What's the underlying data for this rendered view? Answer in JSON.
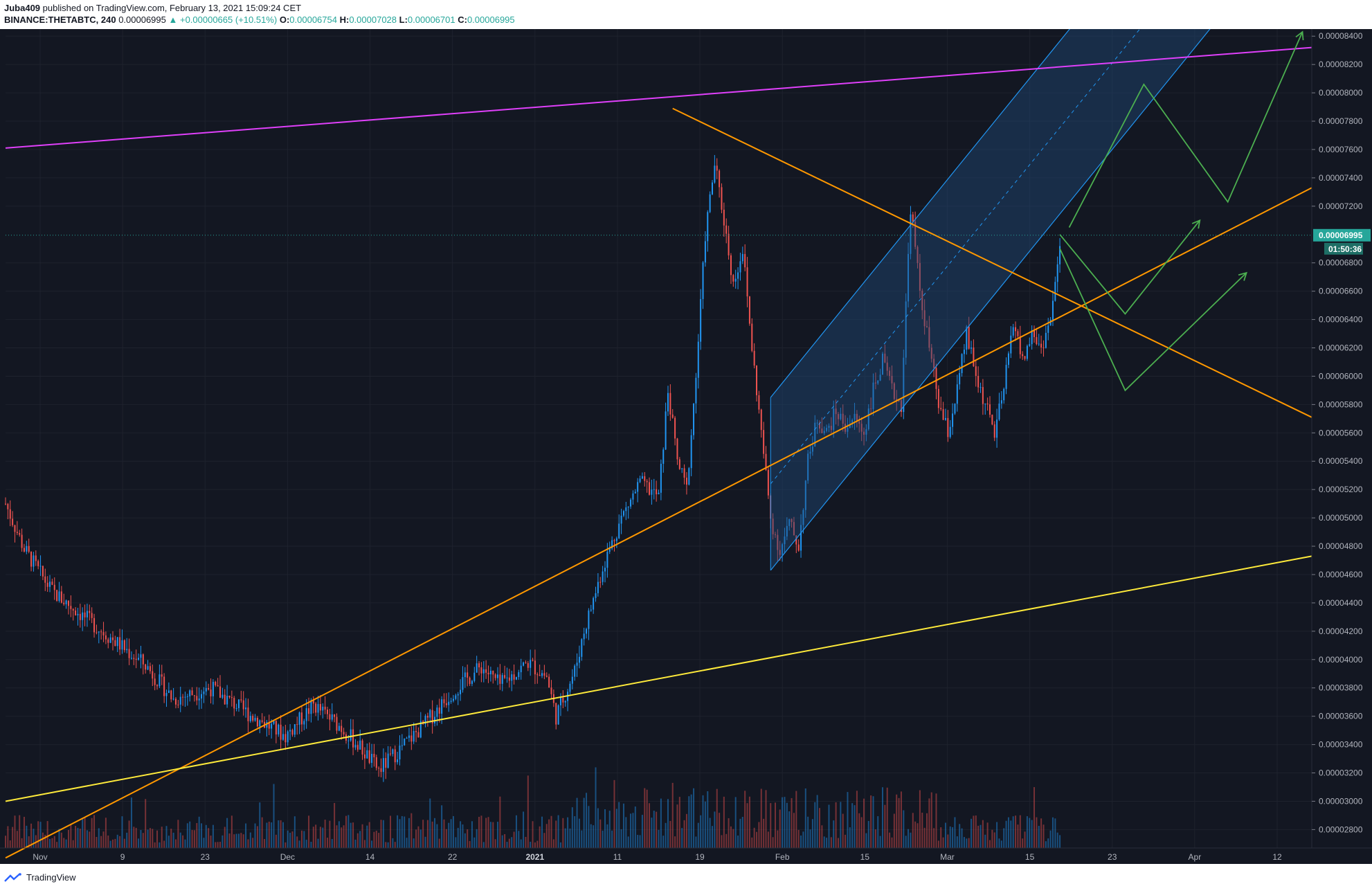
{
  "header": {
    "publisher": "Juba409",
    "published_text": "published on TradingView.com, February 13, 2021 15:09:24 CET",
    "symbol": "BINANCE:THETABTC, 240",
    "last": "0.00006995",
    "change": "▲ +0.00000665 (+10.51%)",
    "o_label": "O:",
    "o_value": "0.00006754",
    "h_label": "H:",
    "h_value": "0.00007028",
    "l_label": "L:",
    "l_value": "0.00006701",
    "c_label": "C:",
    "c_value": "0.00006995"
  },
  "footer": {
    "brand": "TradingView"
  },
  "colors": {
    "background": "#131722",
    "grid": "#1e222d",
    "up": "#26a69a",
    "candle_up": "#2196f3",
    "down": "#ef5350",
    "magenta_line": "#e040fb",
    "orange_line": "#ff9800",
    "yellow_line": "#ffeb3b",
    "projection": "#4caf50",
    "channel_fill": "#1e4a78",
    "channel_border": "#2196f3"
  },
  "chart_data": {
    "type": "candlestick",
    "symbol": "BINANCE:THETABTC",
    "interval": "240",
    "y_axis_ticks": [
      "0.00008400",
      "0.00008200",
      "0.00008000",
      "0.00007800",
      "0.00007600",
      "0.00007400",
      "0.00007200",
      "0.00006800",
      "0.00006600",
      "0.00006400",
      "0.00006200",
      "0.00006000",
      "0.00005800",
      "0.00005600",
      "0.00005400",
      "0.00005200",
      "0.00005000",
      "0.00004800",
      "0.00004600",
      "0.00004400",
      "0.00004200",
      "0.00004000",
      "0.00003800",
      "0.00003600",
      "0.00003400",
      "0.00003200",
      "0.00003000",
      "0.00002800"
    ],
    "y_range": [
      2.67e-05,
      8.45e-05
    ],
    "x_axis_ticks": [
      "Nov",
      "9",
      "23",
      "Dec",
      "14",
      "22",
      "2021",
      "11",
      "19",
      "Feb",
      "15",
      "Mar",
      "15",
      "23",
      "Apr",
      "12"
    ],
    "last_price_label": "0.00006995",
    "countdown_label": "01:50:36",
    "last_price": 6.995e-05,
    "price_anchors": [
      [
        0,
        5.1e-05
      ],
      [
        2,
        4.78e-05
      ],
      [
        5,
        4.48e-05
      ],
      [
        10,
        4.22e-05
      ],
      [
        15,
        3.96e-05
      ],
      [
        18,
        3.72e-05
      ],
      [
        22,
        3.8e-05
      ],
      [
        26,
        3.62e-05
      ],
      [
        30,
        3.46e-05
      ],
      [
        33,
        3.68e-05
      ],
      [
        36,
        3.52e-05
      ],
      [
        38,
        3.38e-05
      ],
      [
        40,
        3.22e-05
      ],
      [
        42,
        3.35e-05
      ],
      [
        45,
        3.55e-05
      ],
      [
        48,
        3.78e-05
      ],
      [
        51,
        3.95e-05
      ],
      [
        53,
        3.82e-05
      ],
      [
        56,
        3.98e-05
      ],
      [
        58,
        3.88e-05
      ],
      [
        59,
        3.6e-05
      ],
      [
        61,
        3.92e-05
      ],
      [
        62,
        4.2e-05
      ],
      [
        64,
        4.65e-05
      ],
      [
        66,
        5e-05
      ],
      [
        68,
        5.25e-05
      ],
      [
        70,
        5.15e-05
      ],
      [
        71,
        5.9e-05
      ],
      [
        72,
        5.4e-05
      ],
      [
        73,
        5.2e-05
      ],
      [
        74,
        6e-05
      ],
      [
        75,
        7e-05
      ],
      [
        76,
        7.5e-05
      ],
      [
        77,
        7.1e-05
      ],
      [
        78,
        6.65e-05
      ],
      [
        79,
        6.9e-05
      ],
      [
        80,
        6.2e-05
      ],
      [
        81,
        5.6e-05
      ],
      [
        82,
        5e-05
      ],
      [
        83,
        4.76e-05
      ],
      [
        84,
        4.96e-05
      ],
      [
        85,
        4.8e-05
      ],
      [
        86,
        5.4e-05
      ],
      [
        87,
        5.7e-05
      ],
      [
        88,
        5.6e-05
      ],
      [
        89,
        5.75e-05
      ],
      [
        90,
        5.65e-05
      ],
      [
        91,
        5.7e-05
      ],
      [
        92,
        5.6e-05
      ],
      [
        93,
        5.9e-05
      ],
      [
        94,
        6.1e-05
      ],
      [
        95,
        5.9e-05
      ],
      [
        96,
        5.8e-05
      ],
      [
        97,
        7.2e-05
      ],
      [
        98,
        6.6e-05
      ],
      [
        99,
        6.2e-05
      ],
      [
        100,
        5.8e-05
      ],
      [
        101,
        5.6e-05
      ],
      [
        102,
        5.9e-05
      ],
      [
        103,
        6.3e-05
      ],
      [
        104,
        6e-05
      ],
      [
        105,
        5.8e-05
      ],
      [
        106,
        5.6e-05
      ],
      [
        107,
        5.9e-05
      ],
      [
        108,
        6.4e-05
      ],
      [
        109,
        6.1e-05
      ],
      [
        110,
        6.3e-05
      ],
      [
        111,
        6.2e-05
      ],
      [
        112,
        6.4e-05
      ],
      [
        113,
        6.9e-05
      ]
    ],
    "drawings": {
      "magenta_resistance": [
        [
          0,
          7.61e-05
        ],
        [
          140,
          8.32e-05
        ]
      ],
      "orange_descending": [
        [
          71.5,
          7.89e-05
        ],
        [
          140,
          5.71e-05
        ]
      ],
      "orange_ascending": [
        [
          0,
          2.6e-05
        ],
        [
          140,
          7.33e-05
        ]
      ],
      "yellow_support": [
        [
          0,
          3e-05
        ],
        [
          140,
          4.73e-05
        ]
      ],
      "channel_lower": [
        [
          82,
          4.63e-05
        ],
        [
          135,
          8.93e-05
        ]
      ],
      "channel_upper": [
        [
          82,
          5.85e-05
        ],
        [
          135,
          0.0001015
        ]
      ],
      "projection_paths": [
        [
          [
            113,
            7e-05
          ],
          [
            120,
            6.44e-05
          ],
          [
            128,
            7.1e-05
          ]
        ],
        [
          [
            113,
            6.9e-05
          ],
          [
            120,
            5.9e-05
          ],
          [
            133,
            6.73e-05
          ]
        ],
        [
          [
            114,
            7.05e-05
          ],
          [
            122,
            8.06e-05
          ],
          [
            131,
            7.23e-05
          ],
          [
            139,
            8.43e-05
          ]
        ]
      ]
    }
  }
}
